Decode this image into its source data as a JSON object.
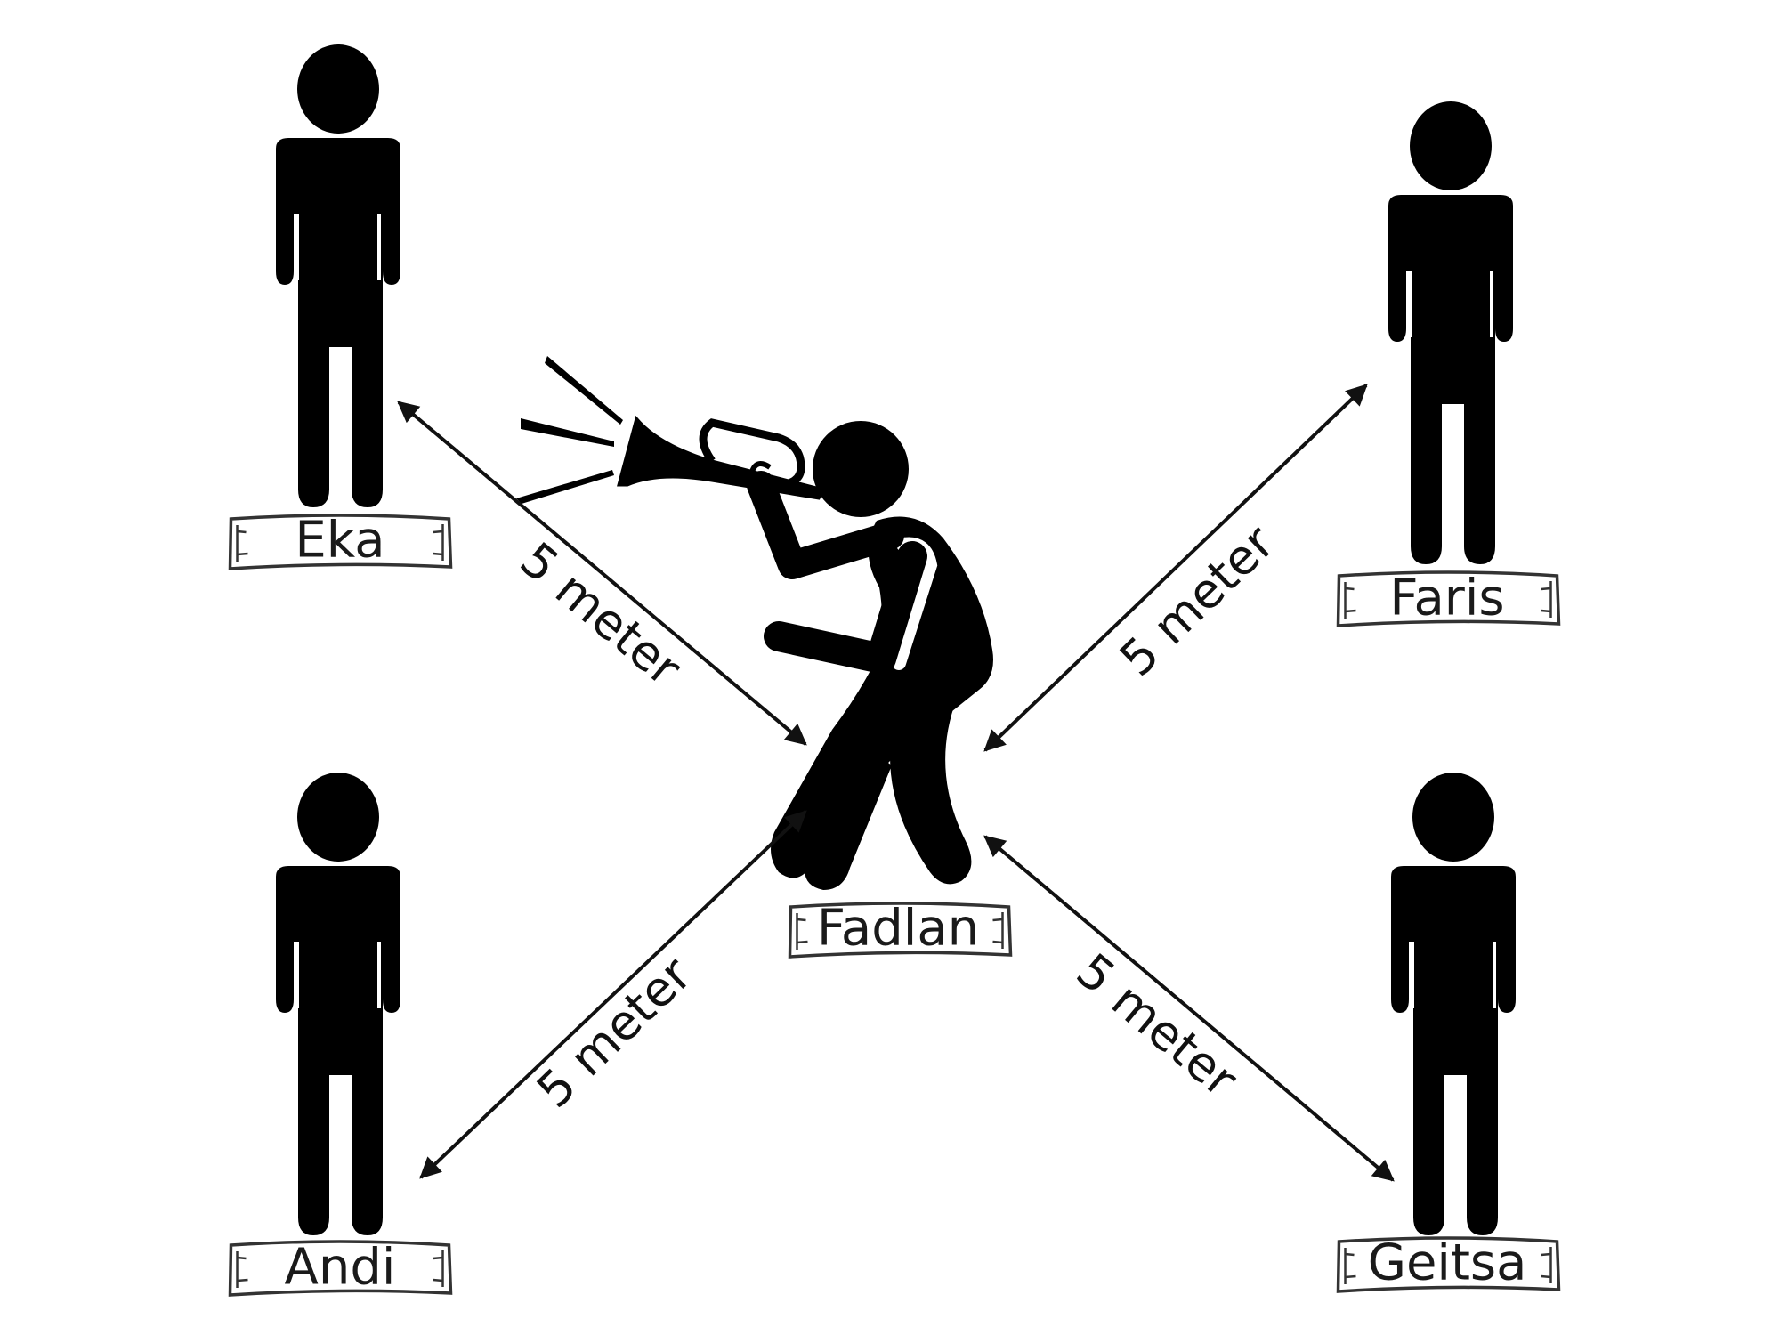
{
  "people": {
    "eka": "Eka",
    "faris": "Faris",
    "fadlan": "Fadlan",
    "andi": "Andi",
    "geitsa": "Geitsa"
  },
  "distances": {
    "top_left": "5 meter",
    "top_right": "5 meter",
    "bottom_left": "5 meter",
    "bottom_right": "5 meter"
  },
  "colors": {
    "figure": "#000000",
    "background": "#ffffff"
  }
}
